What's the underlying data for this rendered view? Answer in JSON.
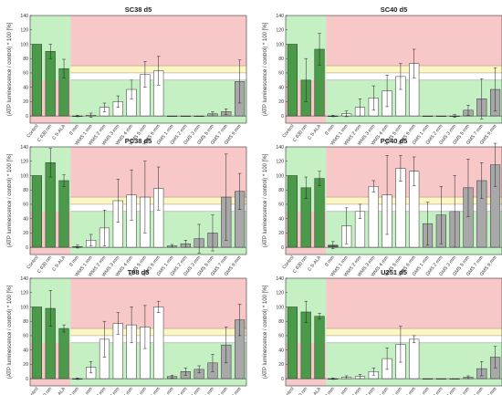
{
  "chart_data": [
    {
      "type": "bar",
      "title": "SC38 d5",
      "ylabel": "(ATP luminescence / control) * 100 [%]",
      "ylim": [
        -10,
        140
      ],
      "yticks": [
        0,
        20,
        40,
        60,
        80,
        100,
        120,
        140
      ],
      "categories": [
        "Control",
        "C 630 nm",
        "C 5-ALA",
        "0 mm",
        "WMS 1 mm",
        "WMS 2 mm",
        "WMS 3 mm",
        "WMS 4 mm",
        "WMS 5 mm",
        "WMS 6 mm",
        "GMS 1 mm",
        "GMS 2 mm",
        "GMS 3 mm",
        "GMS 5 mm",
        "GMS 7 mm",
        "GMS 9 mm"
      ],
      "values": [
        100,
        90,
        66,
        0,
        1,
        12,
        20,
        37,
        58,
        63,
        0,
        0,
        0,
        3,
        6,
        48
      ],
      "errors": [
        0,
        10,
        13,
        1,
        3,
        6,
        8,
        13,
        18,
        20,
        0,
        0,
        0,
        3,
        4,
        30
      ]
    },
    {
      "type": "bar",
      "title": "SC40 d5",
      "ylabel": "(ATP luminescence / control) * 100 [%]",
      "ylim": [
        -10,
        140
      ],
      "yticks": [
        0,
        20,
        40,
        60,
        80,
        100,
        120,
        140
      ],
      "categories": [
        "Control",
        "C 630 nm",
        "C 5-ALA",
        "0 mm",
        "WMS 1 mm",
        "WMS 2 mm",
        "WMS 3 mm",
        "WMS 4 mm",
        "WMS 5 mm",
        "WMS 6 mm",
        "GMS 1 mm",
        "GMS 2 mm",
        "GMS 3 mm",
        "GMS 5 mm",
        "GMS 7 mm",
        "GMS 9 mm"
      ],
      "values": [
        100,
        50,
        93,
        0,
        3,
        12,
        25,
        35,
        55,
        73,
        0,
        0,
        0,
        8,
        24,
        37
      ],
      "errors": [
        0,
        30,
        22,
        1,
        4,
        12,
        17,
        22,
        18,
        20,
        0,
        0,
        2,
        7,
        28,
        30
      ]
    },
    {
      "type": "bar",
      "title": "PC38 d5",
      "ylabel": "(ATP luminescence / control) * 100 [%]",
      "ylim": [
        -10,
        140
      ],
      "yticks": [
        0,
        20,
        40,
        60,
        80,
        100,
        120,
        140
      ],
      "categories": [
        "Control",
        "C 630 nm",
        "C 5-ALA",
        "0 mm",
        "WMS 1 mm",
        "WMS 2 mm",
        "WMS 3 mm",
        "WMS 4 mm",
        "WMS 5 mm",
        "WMS 6 mm",
        "GMS 1 mm",
        "GMS 2 mm",
        "GMS 3 mm",
        "GMS 5 mm",
        "GMS 7 mm",
        "GMS 9 mm"
      ],
      "values": [
        100,
        118,
        93,
        1,
        10,
        27,
        65,
        73,
        70,
        82,
        2,
        5,
        12,
        20,
        70,
        78
      ],
      "errors": [
        0,
        20,
        8,
        2,
        8,
        25,
        30,
        35,
        50,
        30,
        2,
        5,
        20,
        25,
        60,
        25
      ]
    },
    {
      "type": "bar",
      "title": "PC40 d5",
      "ylabel": "(ATP luminescence / control) * 100 [%]",
      "ylim": [
        -10,
        140
      ],
      "yticks": [
        0,
        20,
        40,
        60,
        80,
        100,
        120,
        140
      ],
      "categories": [
        "Control",
        "C 630 nm",
        "C 5-ALA",
        "0 mm",
        "WMS 1 mm",
        "WMS 2 mm",
        "WMS 3 mm",
        "WMS 4 mm",
        "WMS 5 mm",
        "WMS 6 mm",
        "GMS 1 mm",
        "GMS 2 mm",
        "GMS 3 mm",
        "GMS 5 mm",
        "GMS 7 mm",
        "GMS 9 mm"
      ],
      "values": [
        100,
        83,
        96,
        3,
        30,
        50,
        85,
        73,
        110,
        106,
        33,
        45,
        50,
        83,
        93,
        115
      ],
      "errors": [
        0,
        15,
        10,
        5,
        25,
        10,
        8,
        55,
        18,
        20,
        30,
        40,
        50,
        40,
        25,
        30
      ]
    },
    {
      "type": "bar",
      "title": "T98 d5",
      "ylabel": "(ATP luminescence / control) * 100 [%]",
      "ylim": [
        -10,
        140
      ],
      "yticks": [
        0,
        20,
        40,
        60,
        80,
        100,
        120,
        140
      ],
      "categories": [
        "Control",
        "C 630 nm",
        "C 5-ALA",
        "0 mm",
        "WMS 1 mm",
        "WMS 2 mm",
        "WMS 3 mm",
        "WMS 4 mm",
        "WMS 5 mm",
        "WMS 6 mm",
        "GMS 1 mm",
        "GMS 2 mm",
        "GMS 3 mm",
        "GMS 5 mm",
        "GMS 7 mm",
        "GMS 9 mm"
      ],
      "values": [
        100,
        98,
        70,
        0,
        16,
        55,
        77,
        75,
        72,
        100,
        3,
        10,
        13,
        22,
        47,
        82
      ],
      "errors": [
        0,
        25,
        5,
        1,
        8,
        25,
        15,
        25,
        30,
        8,
        2,
        5,
        5,
        12,
        25,
        22
      ]
    },
    {
      "type": "bar",
      "title": "U251 d5",
      "ylabel": "(ATP luminescence / control) * 100 [%]",
      "ylim": [
        -10,
        140
      ],
      "yticks": [
        0,
        20,
        40,
        60,
        80,
        100,
        120,
        140
      ],
      "categories": [
        "Control",
        "C 630 nm",
        "C 5-ALA",
        "0 mm",
        "WMS 1 mm",
        "WMS 2 mm",
        "WMS 3 mm",
        "WMS 4 mm",
        "WMS 5 mm",
        "WMS 6 mm",
        "GMS 1 mm",
        "GMS 2 mm",
        "GMS 3 mm",
        "GMS 5 mm",
        "GMS 7 mm",
        "GMS 9 mm"
      ],
      "values": [
        100,
        93,
        87,
        0,
        2,
        3,
        10,
        28,
        48,
        55,
        0,
        0,
        0,
        2,
        14,
        30
      ],
      "errors": [
        0,
        15,
        4,
        1,
        2,
        3,
        5,
        15,
        25,
        5,
        0,
        0,
        0,
        2,
        10,
        15
      ]
    }
  ],
  "colors": {
    "control_bar": "#4a9a4a",
    "wms_bar": "#ffffff",
    "gms_bar": "#a8a8a8",
    "zero_bar": "#5a5a5a",
    "bg_red": "#f8c8c8",
    "bg_yellow": "#fdf6c0",
    "bg_green": "#c4f0c4",
    "axis": "#333333"
  },
  "zones": {
    "green_below": 50,
    "yellow_from": 60,
    "yellow_to": 70
  }
}
